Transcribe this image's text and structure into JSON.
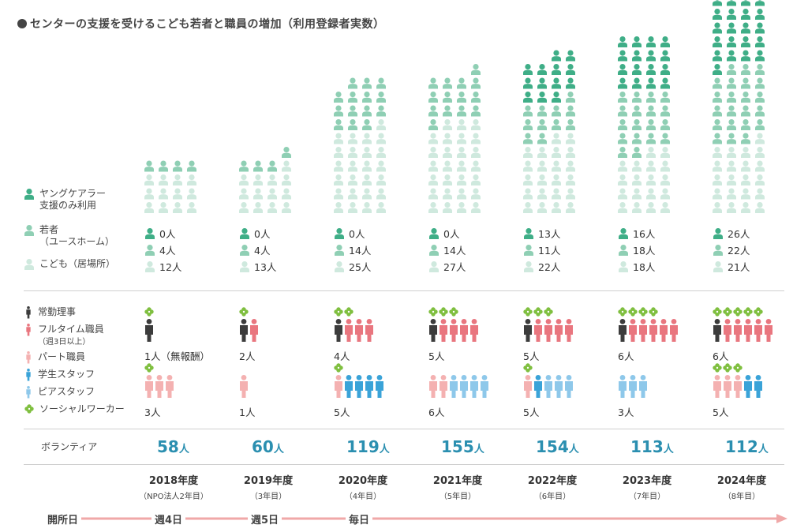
{
  "title": "センターの支援を受けるこども若者と職員の増加（利用登録者実数）",
  "colors": {
    "young_carer": "#3fae87",
    "youth": "#8fcfb4",
    "child": "#cfe9de",
    "fulltime_exec": "#3c3c3c",
    "fulltime": "#e9767f",
    "part": "#f4b1b1",
    "student": "#3aa3d8",
    "peer": "#8ec8ea",
    "social_worker": "#7fbf3f",
    "volunteer": "#2b8fb0",
    "arrow": "#f0a8a8"
  },
  "legend": {
    "young_carer_l1": "ヤングケアラー",
    "young_carer_l2": "支援のみ利用",
    "youth_l1": "若者",
    "youth_l2": "（ユースホーム）",
    "child": "こども（居場所）",
    "exec": "常勤理事",
    "fulltime_l1": "フルタイム職員",
    "fulltime_l2": "（週3日以上）",
    "part": "パート職員",
    "student": "学生スタッフ",
    "peer": "ピアスタッフ",
    "sw": "ソーシャルワーカー"
  },
  "volunteer_label": "ボランティア",
  "unit": "人",
  "opening_label": "開所日",
  "days": [
    "週4日",
    "週5日",
    "毎日"
  ],
  "chart_data": {
    "type": "table",
    "years": [
      "2018年度",
      "2019年度",
      "2020年度",
      "2021年度",
      "2022年度",
      "2023年度",
      "2024年度"
    ],
    "subs": [
      "（NPO法人2年目）",
      "（3年目）",
      "（4年目）",
      "（5年目）",
      "（6年目）",
      "（7年目）",
      "（8年目）"
    ],
    "young_carer": [
      0,
      0,
      0,
      0,
      13,
      16,
      26
    ],
    "youth": [
      4,
      4,
      14,
      14,
      11,
      18,
      22
    ],
    "child": [
      12,
      13,
      25,
      27,
      22,
      18,
      21
    ],
    "young_carer_text": [
      "0人",
      "0人",
      "0人",
      "0人",
      "13人",
      "16人",
      "26人"
    ],
    "youth_text": [
      "4人",
      "4人",
      "14人",
      "14人",
      "11人",
      "18人",
      "22人"
    ],
    "child_text": [
      "12人",
      "13人",
      "25人",
      "27人",
      "22人",
      "18人",
      "21人"
    ],
    "fulltime_total_text": [
      "1人（無報酬）",
      "2人",
      "4人",
      "5人",
      "5人",
      "6人",
      "6人"
    ],
    "fulltime_exec": [
      1,
      1,
      1,
      1,
      1,
      1,
      1
    ],
    "fulltime_staff": [
      0,
      1,
      3,
      4,
      4,
      5,
      5
    ],
    "fulltime_sw": [
      1,
      1,
      2,
      3,
      3,
      4,
      5
    ],
    "parttime_total_text": [
      "3人",
      "1人",
      "5人",
      "6人",
      "5人",
      "3人",
      "5人"
    ],
    "part_staff": [
      3,
      1,
      1,
      2,
      1,
      0,
      3
    ],
    "student_staff": [
      0,
      0,
      4,
      0,
      1,
      0,
      2
    ],
    "peer_staff": [
      0,
      0,
      0,
      4,
      3,
      3,
      0
    ],
    "part_sw": [
      1,
      0,
      1,
      0,
      1,
      0,
      3
    ],
    "volunteers": [
      58,
      60,
      119,
      155,
      154,
      113,
      112
    ]
  }
}
